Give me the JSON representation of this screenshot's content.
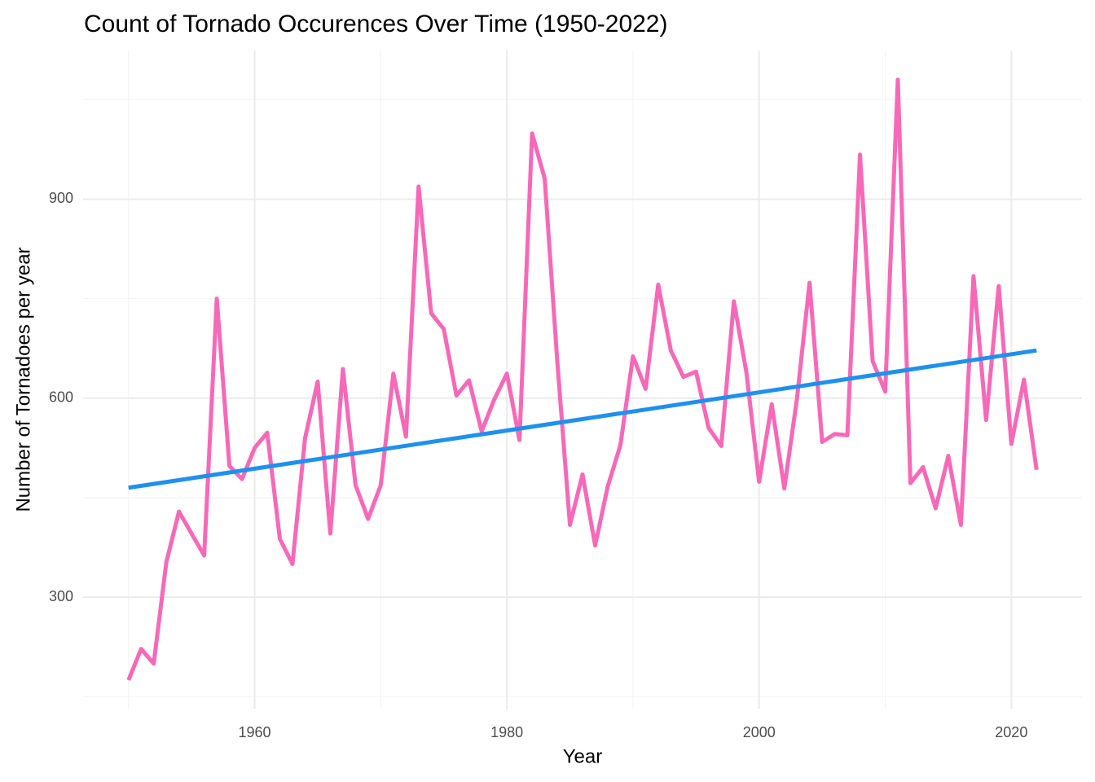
{
  "chart_data": {
    "type": "line",
    "title": "Count of Tornado Occurences Over Time (1950-2022)",
    "xlabel": "Year",
    "ylabel": "Number of Tornadoes per year",
    "xlim": [
      1946.4,
      2025.6
    ],
    "ylim": [
      132,
      1124
    ],
    "xticks": [
      1960,
      1980,
      2000,
      2020
    ],
    "yticks": [
      300,
      600,
      900
    ],
    "xminor": [
      1950,
      1970,
      1990,
      2010
    ],
    "yminor": [
      150,
      450,
      750,
      1050
    ],
    "grid": true,
    "series": [
      {
        "color": "#f768b8",
        "x": [
          1950,
          1951,
          1952,
          1953,
          1954,
          1955,
          1956,
          1957,
          1958,
          1959,
          1960,
          1961,
          1962,
          1963,
          1964,
          1965,
          1966,
          1967,
          1968,
          1969,
          1970,
          1971,
          1972,
          1973,
          1974,
          1975,
          1976,
          1977,
          1978,
          1979,
          1980,
          1981,
          1982,
          1983,
          1984,
          1985,
          1986,
          1987,
          1988,
          1989,
          1990,
          1991,
          1992,
          1993,
          1994,
          1995,
          1996,
          1997,
          1998,
          1999,
          2000,
          2001,
          2002,
          2003,
          2004,
          2005,
          2006,
          2007,
          2008,
          2009,
          2010,
          2011,
          2012,
          2013,
          2014,
          2015,
          2016,
          2017,
          2018,
          2019,
          2020,
          2021,
          2022
        ],
        "values": [
          175,
          222,
          200,
          353,
          429,
          396,
          363,
          750,
          498,
          478,
          525,
          548,
          388,
          350,
          540,
          625,
          396,
          644,
          469,
          418,
          469,
          637,
          542,
          919,
          728,
          704,
          604,
          627,
          550,
          598,
          637,
          537,
          999,
          931,
          655,
          409,
          485,
          378,
          467,
          529,
          663,
          614,
          771,
          672,
          632,
          640,
          555,
          528,
          746,
          638,
          474,
          591,
          464,
          599,
          774,
          534,
          546,
          544,
          967,
          656,
          610,
          1080,
          472,
          496,
          434,
          513,
          409,
          784,
          567,
          769,
          531,
          628,
          492
        ]
      },
      {
        "color": "#1e90f0",
        "x": [
          1950,
          2022
        ],
        "values": [
          465,
          672
        ]
      }
    ]
  }
}
